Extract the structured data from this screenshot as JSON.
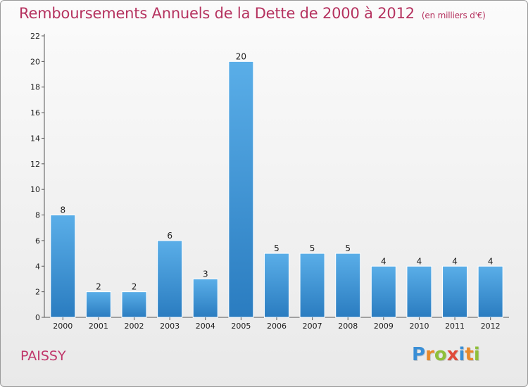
{
  "chart_data": {
    "type": "bar",
    "title": "Remboursements Annuels de la Dette de 2000 à 2012",
    "unit": "(en milliers d'€)",
    "categories": [
      "2000",
      "2001",
      "2002",
      "2003",
      "2004",
      "2005",
      "2006",
      "2007",
      "2008",
      "2009",
      "2010",
      "2011",
      "2012"
    ],
    "values": [
      8,
      2,
      2,
      6,
      3,
      20,
      5,
      5,
      5,
      4,
      4,
      4,
      4
    ],
    "ylim": [
      0,
      22
    ],
    "yticks": [
      0,
      2,
      4,
      6,
      8,
      10,
      12,
      14,
      16,
      18,
      20,
      22
    ],
    "grid": false,
    "bar_color": "#3f95d8"
  },
  "location": "PAISSY",
  "logo": {
    "text": "Proxiti",
    "colors": [
      "#3a8fd6",
      "#e8892a",
      "#8fbf3a",
      "#e04a3a",
      "#3a8fd6",
      "#e8892a",
      "#8fbf3a"
    ]
  },
  "colors": {
    "title": "#b5325f",
    "location": "#c0366a"
  }
}
